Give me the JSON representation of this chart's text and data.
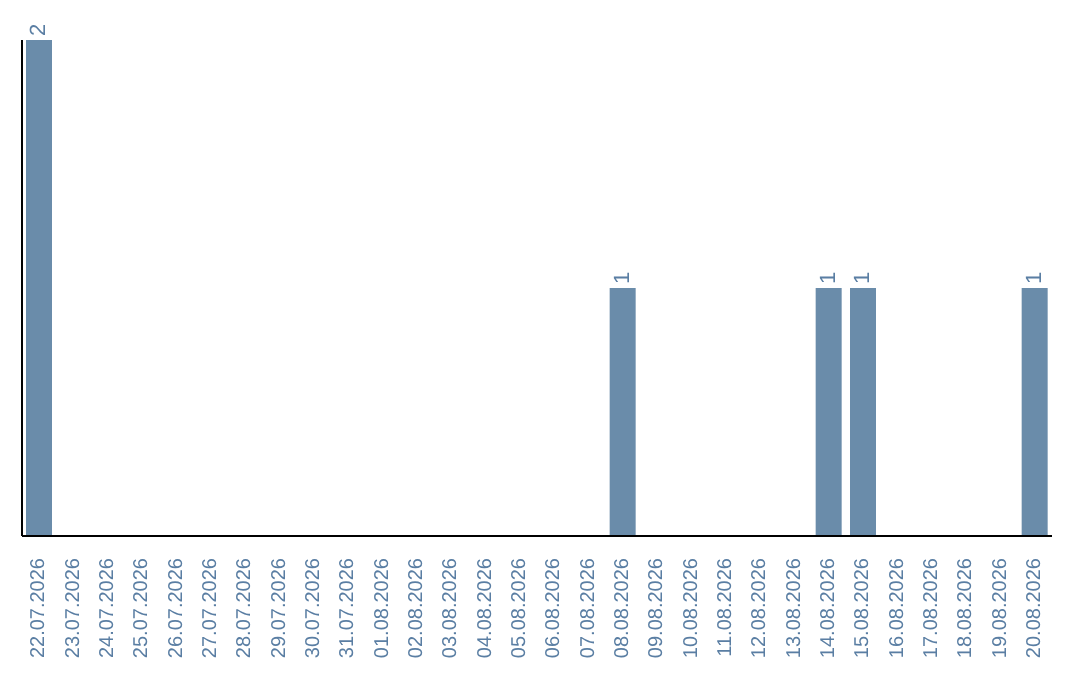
{
  "chart_data": {
    "type": "bar",
    "categories": [
      "22.07.2026",
      "23.07.2026",
      "24.07.2026",
      "25.07.2026",
      "26.07.2026",
      "27.07.2026",
      "28.07.2026",
      "29.07.2026",
      "30.07.2026",
      "31.07.2026",
      "01.08.2026",
      "02.08.2026",
      "03.08.2026",
      "04.08.2026",
      "05.08.2026",
      "06.08.2026",
      "07.08.2026",
      "08.08.2026",
      "09.08.2026",
      "10.08.2026",
      "11.08.2026",
      "12.08.2026",
      "13.08.2026",
      "14.08.2026",
      "15.08.2026",
      "16.08.2026",
      "17.08.2026",
      "18.08.2026",
      "19.08.2026",
      "20.08.2026"
    ],
    "values": [
      2,
      0,
      0,
      0,
      0,
      0,
      0,
      0,
      0,
      0,
      0,
      0,
      0,
      0,
      0,
      0,
      0,
      1,
      0,
      0,
      0,
      0,
      0,
      1,
      1,
      0,
      0,
      0,
      0,
      1
    ],
    "value_labels": [
      "2",
      null,
      null,
      null,
      null,
      null,
      null,
      null,
      null,
      null,
      null,
      null,
      null,
      null,
      null,
      null,
      null,
      "1",
      null,
      null,
      null,
      null,
      null,
      "1",
      "1",
      null,
      null,
      null,
      null,
      "1"
    ],
    "color": "#6a8caa",
    "tick_labels": "x",
    "grid": false,
    "legend": false
  }
}
